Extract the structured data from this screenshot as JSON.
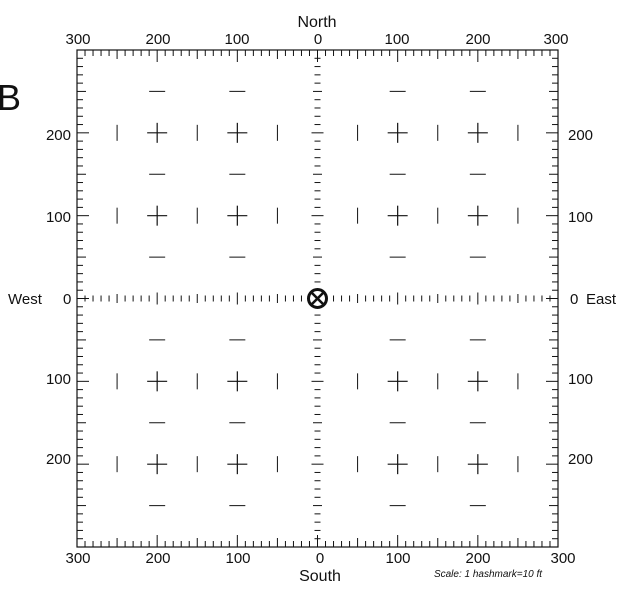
{
  "panel_letter": "B",
  "directions": {
    "north": "North",
    "south": "South",
    "west": "West",
    "east": "East"
  },
  "origin_labels": {
    "west": "0",
    "east": "0"
  },
  "axis_labels": {
    "top": [
      "300",
      "200",
      "100",
      "0",
      "100",
      "200",
      "300"
    ],
    "bottom": [
      "300",
      "200",
      "100",
      "0",
      "100",
      "200",
      "300"
    ],
    "left": [
      "200",
      "100",
      "100",
      "200"
    ],
    "right": [
      "200",
      "100",
      "100",
      "200"
    ]
  },
  "scale_note": "Scale: 1 hashmark=10 ft",
  "grid": {
    "range_ft": 300,
    "hashmark_ft": 10,
    "plus_marker_coords_ft": [
      -200,
      -100,
      100,
      200
    ],
    "center_marker": "circled-x-icon"
  },
  "colors": {
    "ink": "#111111",
    "background": "#ffffff"
  }
}
